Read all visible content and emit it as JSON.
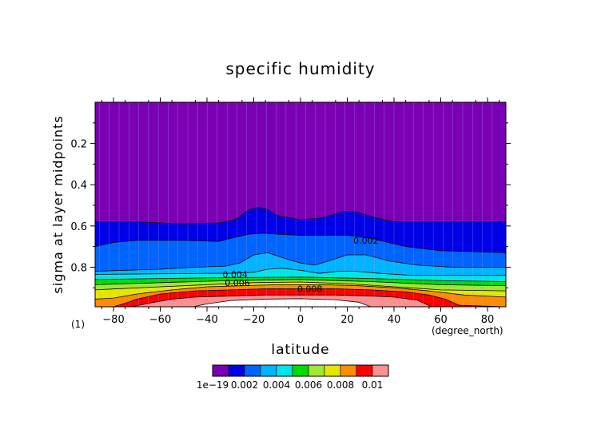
{
  "chart_data": {
    "type": "heatmap",
    "title": "specific humidity",
    "xlabel": "latitude",
    "ylabel": "sigma at layer midpoints",
    "x_unit_label": "(degree_north)",
    "y_unit_label": "(1)",
    "xlim": [
      -87.8638,
      87.8638
    ],
    "ylim": [
      0.992,
      0.0
    ],
    "x_ticks": [
      -80,
      -60,
      -40,
      -20,
      0,
      20,
      40,
      60,
      80
    ],
    "x_tick_labels": [
      "−80",
      "−60",
      "−40",
      "−20",
      "0",
      "20",
      "40",
      "60",
      "80"
    ],
    "y_ticks": [
      0.2,
      0.4,
      0.6,
      0.8
    ],
    "y_tick_labels": [
      "0.2",
      "0.4",
      "0.6",
      "0.8"
    ],
    "contour_levels": [
      1e-19,
      0.001,
      0.002,
      0.003,
      0.004,
      0.005,
      0.006,
      0.007,
      0.008,
      0.009,
      0.01
    ],
    "colors": [
      "#7b00b4",
      "#0000e6",
      "#0064ff",
      "#00b4ff",
      "#00e6e6",
      "#00dc00",
      "#a0e632",
      "#e6e600",
      "#ff8c00",
      "#ff0000",
      "#ff9090"
    ],
    "max_region_color": "#ffffff",
    "grid_color": "#a4a4ff",
    "contour_labels": [
      {
        "text": "0.002",
        "lat": 28,
        "sigma": 0.67
      },
      {
        "text": "0.004",
        "lat": -28,
        "sigma": 0.835
      },
      {
        "text": "0.006",
        "lat": -27,
        "sigma": 0.875
      },
      {
        "text": "0.008",
        "lat": 4,
        "sigma": 0.905
      }
    ],
    "boundaries": [
      {
        "level": 0.001,
        "lat": [
          -87.86,
          -70,
          -50,
          -35,
          -28,
          -22,
          -18,
          -14,
          -10,
          0,
          10,
          18,
          22,
          26,
          32,
          40,
          55,
          70,
          87.86
        ],
        "sigma": [
          0.58,
          0.58,
          0.59,
          0.585,
          0.57,
          0.52,
          0.51,
          0.52,
          0.55,
          0.57,
          0.56,
          0.53,
          0.53,
          0.54,
          0.56,
          0.58,
          0.58,
          0.58,
          0.58
        ]
      },
      {
        "level": 0.002,
        "lat": [
          -87.86,
          -80,
          -70,
          -50,
          -35,
          -30,
          -22,
          -16,
          -10,
          0,
          10,
          20,
          30,
          45,
          60,
          75,
          87.86
        ],
        "sigma": [
          0.7,
          0.68,
          0.67,
          0.67,
          0.675,
          0.66,
          0.64,
          0.635,
          0.64,
          0.645,
          0.645,
          0.645,
          0.66,
          0.7,
          0.72,
          0.725,
          0.73
        ]
      },
      {
        "level": 0.003,
        "lat": [
          -87.86,
          -75,
          -60,
          -45,
          -32,
          -26,
          -20,
          -14,
          -6,
          0,
          6,
          12,
          20,
          28,
          38,
          50,
          65,
          87.86
        ],
        "sigma": [
          0.82,
          0.815,
          0.81,
          0.8,
          0.795,
          0.78,
          0.74,
          0.73,
          0.76,
          0.78,
          0.79,
          0.77,
          0.74,
          0.74,
          0.77,
          0.79,
          0.8,
          0.8
        ]
      },
      {
        "level": 0.004,
        "lat": [
          -87.86,
          -60,
          -40,
          -30,
          -20,
          -14,
          -8,
          0,
          8,
          16,
          24,
          34,
          48,
          65,
          87.86
        ],
        "sigma": [
          0.835,
          0.832,
          0.83,
          0.83,
          0.825,
          0.81,
          0.805,
          0.815,
          0.83,
          0.82,
          0.82,
          0.83,
          0.84,
          0.84,
          0.84
        ]
      },
      {
        "level": 0.005,
        "lat": [
          -87.86,
          -60,
          -30,
          0,
          30,
          60,
          87.86
        ],
        "sigma": [
          0.86,
          0.855,
          0.85,
          0.848,
          0.855,
          0.865,
          0.87
        ]
      },
      {
        "level": 0.006,
        "lat": [
          -87.86,
          -60,
          -30,
          0,
          30,
          60,
          87.86
        ],
        "sigma": [
          0.885,
          0.875,
          0.865,
          0.86,
          0.87,
          0.885,
          0.89
        ]
      },
      {
        "level": 0.007,
        "lat": [
          -87.86,
          -60,
          -40,
          -20,
          0,
          20,
          40,
          60,
          87.86
        ],
        "sigma": [
          0.91,
          0.895,
          0.885,
          0.875,
          0.872,
          0.88,
          0.895,
          0.91,
          0.915
        ]
      },
      {
        "level": 0.008,
        "lat": [
          -87.86,
          -80,
          -70,
          -55,
          -40,
          -25,
          -10,
          0,
          10,
          25,
          40,
          55,
          70,
          87.86
        ],
        "sigma": [
          0.955,
          0.95,
          0.93,
          0.91,
          0.895,
          0.89,
          0.885,
          0.885,
          0.885,
          0.89,
          0.9,
          0.915,
          0.935,
          0.945
        ]
      },
      {
        "level": 0.009,
        "lat": [
          -87.86,
          -80,
          -75,
          -70,
          -60,
          -45,
          -30,
          -15,
          0,
          15,
          30,
          45,
          55,
          62,
          68,
          87.86
        ],
        "sigma": [
          0.992,
          0.992,
          0.975,
          0.955,
          0.93,
          0.915,
          0.91,
          0.905,
          0.905,
          0.905,
          0.91,
          0.92,
          0.935,
          0.955,
          0.985,
          0.992
        ]
      },
      {
        "level": 0.01,
        "lat": [
          -87.86,
          -72,
          -65,
          -55,
          -45,
          -30,
          -15,
          0,
          15,
          30,
          40,
          50,
          56,
          87.86
        ],
        "sigma": [
          0.992,
          0.992,
          0.975,
          0.955,
          0.945,
          0.94,
          0.935,
          0.935,
          0.935,
          0.94,
          0.945,
          0.96,
          0.992,
          0.992
        ]
      },
      {
        "level": 0.011,
        "lat": [
          -87.86,
          -46,
          -40,
          -30,
          -15,
          0,
          15,
          25,
          30,
          87.86
        ],
        "sigma": [
          0.992,
          0.992,
          0.978,
          0.962,
          0.955,
          0.953,
          0.958,
          0.97,
          0.992,
          0.992
        ]
      }
    ],
    "colorbar": {
      "tick_labels": [
        "1e−19",
        "0.002",
        "0.004",
        "0.006",
        "0.008",
        "0.01"
      ]
    }
  }
}
